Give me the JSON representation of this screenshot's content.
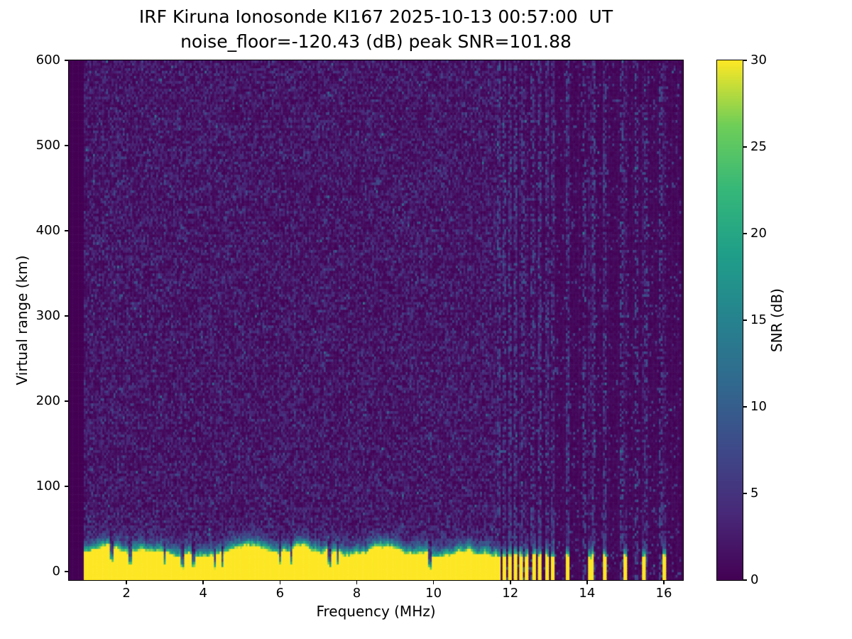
{
  "chart_data": {
    "type": "heatmap",
    "title_line1": "IRF Kiruna Ionosonde KI167 2025-10-13 00:57:00  UT",
    "title_line2": "noise_floor=-120.43 (dB) peak SNR=101.88",
    "xlabel": "Frequency (MHz)",
    "ylabel": "Virtual range (km)",
    "colorbar_label": "SNR (dB)",
    "colormap": "viridis",
    "x_range_mhz": [
      0.5,
      16.5
    ],
    "y_range_km": [
      -10,
      600
    ],
    "snr_range_db": [
      0,
      30
    ],
    "x_ticks_mhz": [
      2,
      4,
      6,
      8,
      10,
      12,
      14,
      16
    ],
    "y_ticks_km": [
      0,
      100,
      200,
      300,
      400,
      500,
      600
    ],
    "colorbar_ticks_db": [
      0,
      5,
      10,
      15,
      20,
      25,
      30
    ],
    "noise_floor_db": -120.43,
    "peak_snr_db": 101.88,
    "features": {
      "data_start_mhz": 0.88,
      "data_end_mhz": 16.45,
      "continuous_sweep_end_mhz": 11.65,
      "ground_clutter": {
        "yellow_top_km_min": 16,
        "yellow_top_km_max": 30,
        "transition_km": 22,
        "snr_db": 30
      },
      "clutter_notches_mhz": [
        1.6,
        2.1,
        3.0,
        3.45,
        3.75,
        4.3,
        4.5,
        6.3,
        7.3,
        9.9
      ],
      "sparse_soundings_mhz": [
        11.7,
        11.85,
        12.0,
        12.15,
        12.3,
        12.45,
        12.62,
        12.78,
        12.95,
        13.1,
        13.5,
        14.1,
        14.45,
        15.0,
        15.5,
        16.0
      ],
      "rfi_stripes_mhz": [
        11.7,
        11.85,
        12.0,
        12.15,
        12.35,
        12.55,
        12.75,
        12.95,
        13.1,
        13.5,
        13.95,
        14.15,
        14.45,
        14.9,
        15.3,
        15.55,
        15.9
      ],
      "background_noise": {
        "speckle_fraction": 0.17,
        "speckle_snr_db": [
          1.5,
          8
        ],
        "base_snr_db": [
          0,
          1.3
        ]
      }
    }
  }
}
